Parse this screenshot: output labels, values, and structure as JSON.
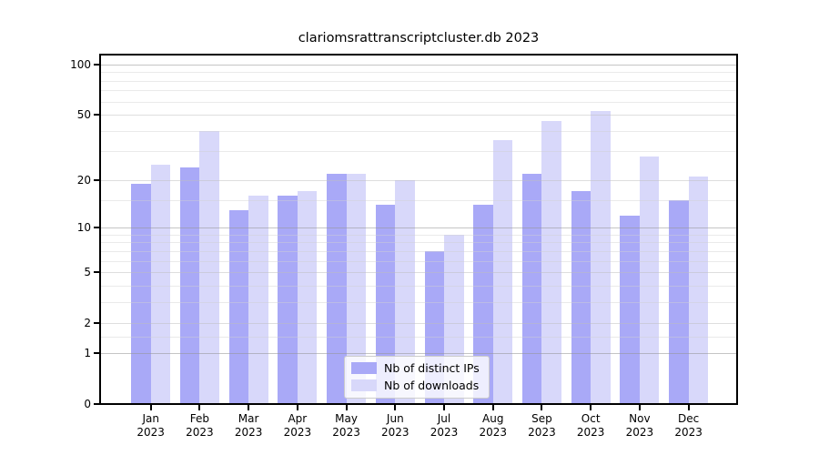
{
  "title": "clariomsrattranscriptcluster.db 2023",
  "legend": {
    "items": [
      {
        "label": "Nb of distinct IPs",
        "color": "#a9a9f7"
      },
      {
        "label": "Nb of downloads",
        "color": "#d8d8fa"
      }
    ]
  },
  "chart_data": {
    "type": "bar",
    "title": "clariomsrattranscriptcluster.db 2023",
    "categories": [
      "Jan",
      "Feb",
      "Mar",
      "Apr",
      "May",
      "Jun",
      "Jul",
      "Aug",
      "Sep",
      "Oct",
      "Nov",
      "Dec"
    ],
    "x_year_line": "2023",
    "series": [
      {
        "name": "Nb of distinct IPs",
        "color": "#a9a9f7",
        "values": [
          19,
          24,
          13,
          16,
          22,
          14,
          7,
          14,
          22,
          17,
          12,
          15
        ]
      },
      {
        "name": "Nb of downloads",
        "color": "#d8d8fa",
        "values": [
          25,
          40,
          16,
          17,
          22,
          20,
          9,
          35,
          46,
          53,
          28,
          21
        ]
      }
    ],
    "ylabel": "",
    "xlabel": "",
    "yscale": "log1p",
    "ylim": [
      0,
      115
    ],
    "y_ticks": [
      100,
      50,
      20,
      10,
      5,
      2,
      1,
      0
    ],
    "y_major_gridlines": [
      100,
      10,
      1
    ],
    "y_mid_gridlines": [
      50,
      20,
      5,
      2
    ],
    "y_minor_gridlines": [
      90,
      80,
      70,
      60,
      40,
      30,
      15,
      9,
      8,
      7,
      6,
      4,
      3,
      1.5
    ],
    "grid": true,
    "legend_position": "lower center"
  },
  "colors": {
    "major_grid": "rgba(150,150,150,0.55)",
    "mid_grid": "rgba(190,190,190,0.5)",
    "minor_grid": "rgba(208,208,208,0.45)"
  }
}
